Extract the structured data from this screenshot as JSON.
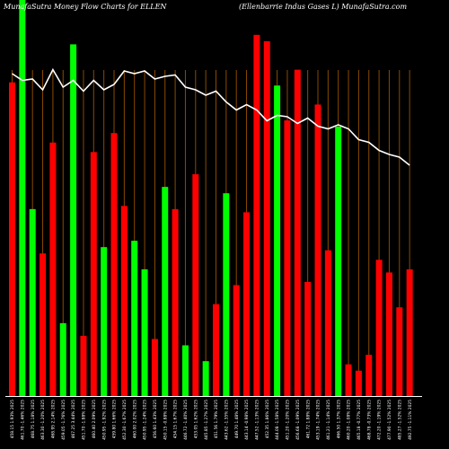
{
  "header": {
    "left": "MunafaSutra  Money Flow  Charts for ELLEN",
    "right": "(Ellenbarrie  Indus Gases L) MunafaSutra.com"
  },
  "colors": {
    "background": "#000000",
    "up": "#00ff00",
    "down": "#ff0000",
    "grid": "#8a4a00",
    "line": "#ffffff",
    "baseline": "#ffffff"
  },
  "chart_data": {
    "type": "bar",
    "title": "MunafaSutra  Money Flow  Charts for ELLEN",
    "subtitle": "(Ellenbarrie  Indus Gases L) MunafaSutra.com",
    "categories": [
      "458.15 1.93% 2025",
      "461.70 -1.46% 2025",
      "468.75 1.18% 2025",
      "463.30 -1.20% 2025",
      "468.95 2.14% 2025",
      "459.05 -1.76% 2025",
      "467.25 3.44% 2025",
      "451.70 -1.88% 2025",
      "460.40 2.09% 2025",
      "450.95 -1.92% 2025",
      "459.80 1.66% 2025",
      "452.30 -1.67% 2025",
      "460.00 2.02% 2025",
      "450.95 -1.24% 2025",
      "456.60 1.43% 2025",
      "450.15 -0.88% 2025",
      "454.15 1.67% 2025",
      "446.72 -1.40% 2025",
      "453.05 1.62% 2025",
      "445.85 -1.27% 2025",
      "451.56 1.79% 2025",
      "443.62 -1.35% 2025",
      "449.70 1.48% 2025",
      "443.14 -0.98% 2025",
      "447.52 -1.13% 2025",
      "452.35 1.86% 2025",
      "444.08 -1.58% 2025",
      "451.20 -1.20% 2025",
      "456.68 -1.09% 2025",
      "461.72 1.88% 2025",
      "453.19 -1.74% 2025",
      "461.21 -1.14% 2025",
      "466.50 1.37% 2025",
      "460.20 -1.08% 2025",
      "465.18 -0.77% 2025",
      "468.78 -0.73% 2025",
      "472.20 -1.19% 2025",
      "477.90 -1.52% 2025",
      "485.27 -1.52% 2025",
      "492.75 -1.11% 2025"
    ],
    "series": [
      {
        "values": [
          99,
          125,
          59,
          45,
          80,
          23,
          111,
          19,
          77,
          47,
          83,
          60,
          49,
          40,
          18,
          66,
          59,
          16,
          70,
          11,
          29,
          64,
          35,
          58,
          114,
          112,
          98,
          87,
          103,
          36,
          92,
          46,
          85,
          10,
          8,
          13,
          43,
          39,
          28,
          40
        ],
        "directions": [
          "down",
          "up",
          "up",
          "down",
          "down",
          "up",
          "up",
          "down",
          "down",
          "up",
          "down",
          "down",
          "up",
          "up",
          "down",
          "up",
          "down",
          "up",
          "down",
          "up",
          "down",
          "up",
          "down",
          "down",
          "down",
          "down",
          "up",
          "down",
          "down",
          "down",
          "down",
          "down",
          "up",
          "down",
          "down",
          "down",
          "down",
          "down",
          "down",
          "down"
        ]
      }
    ],
    "line": [
      8,
      13,
      12,
      20,
      5,
      18,
      13,
      21,
      13,
      20,
      16,
      6,
      8,
      6,
      12,
      10,
      9,
      18,
      20,
      24,
      21,
      29,
      35,
      31,
      35,
      43,
      39,
      40,
      45,
      41,
      47,
      49,
      46,
      49,
      57,
      59,
      65,
      68,
      70,
      76
    ],
    "xlabel": "",
    "ylabel": "",
    "ylim": [
      0,
      125
    ],
    "grid": "vertical"
  }
}
